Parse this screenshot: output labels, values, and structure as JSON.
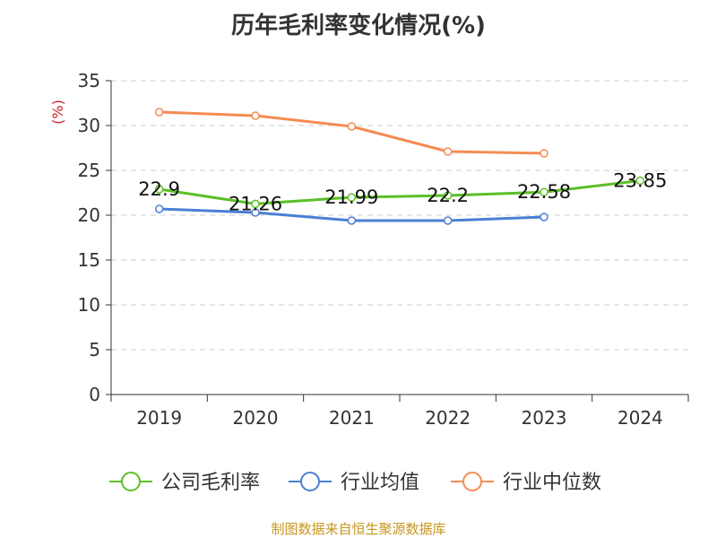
{
  "chart_data": {
    "type": "line",
    "title": "历年毛利率变化情况(%)",
    "ylabel": "(%)",
    "xlabel": "",
    "categories": [
      "2019",
      "2020",
      "2021",
      "2022",
      "2023",
      "2024"
    ],
    "ylim": [
      0,
      35
    ],
    "yticks": [
      0,
      5,
      10,
      15,
      20,
      25,
      30,
      35
    ],
    "grid": true,
    "legend_position": "bottom",
    "series": [
      {
        "name": "公司毛利率",
        "color": "#5cbf27",
        "values": [
          22.9,
          21.26,
          21.99,
          22.2,
          22.58,
          23.85
        ],
        "labels": [
          "22.9",
          "21.26",
          "21.99",
          "22.2",
          "22.58",
          "23.85"
        ]
      },
      {
        "name": "行业均值",
        "color": "#4a7fd6",
        "values": [
          20.7,
          20.3,
          19.4,
          19.4,
          19.8,
          null
        ]
      },
      {
        "name": "行业中位数",
        "color": "#f58c54",
        "values": [
          31.5,
          31.1,
          29.9,
          27.1,
          26.9,
          null
        ]
      }
    ]
  },
  "source": "制图数据来自恒生聚源数据库"
}
